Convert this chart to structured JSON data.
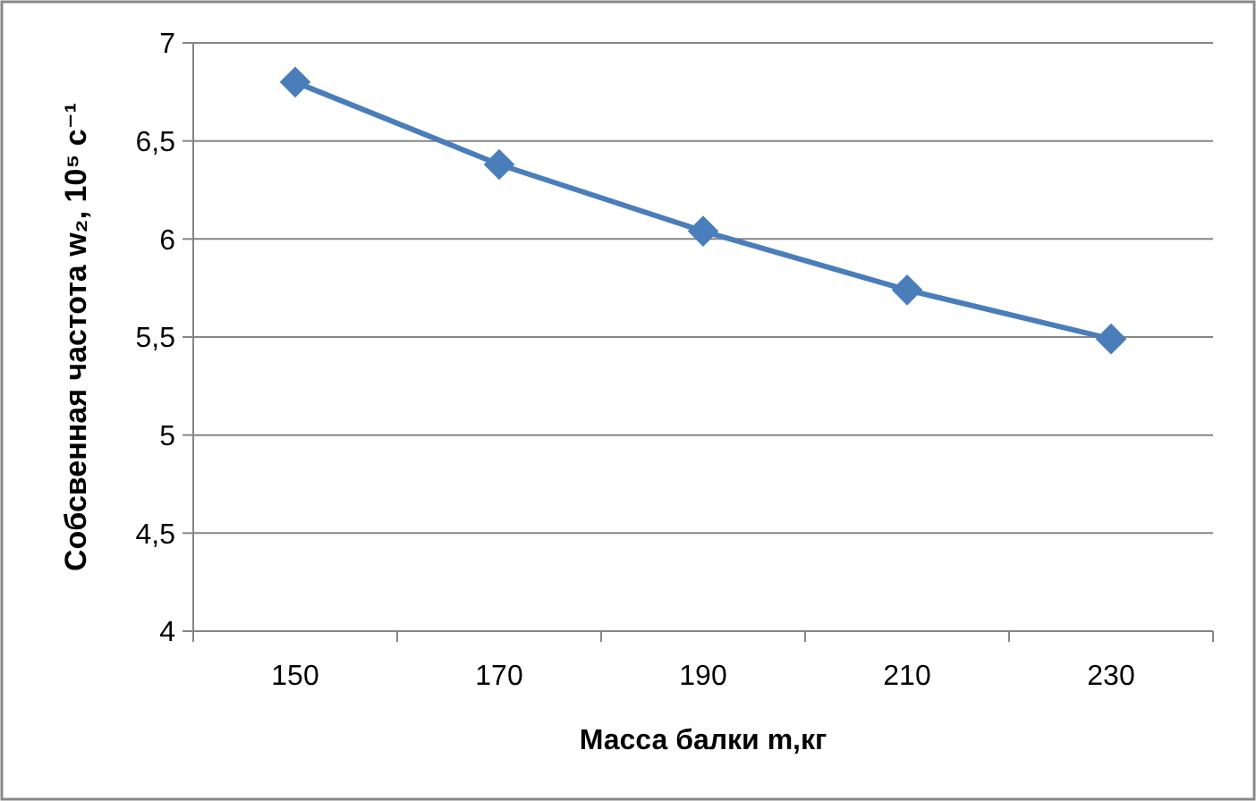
{
  "chart_data": {
    "type": "line",
    "xlabel": "Масса балки m,кг",
    "ylabel": "Собсвенная частота w₂, 10⁵ с⁻¹",
    "categories": [
      "150",
      "170",
      "190",
      "210",
      "230"
    ],
    "series": [
      {
        "color": "#4a7ebb",
        "values": [
          6.8,
          6.38,
          6.04,
          5.74,
          5.49
        ]
      }
    ],
    "ylim": [
      4,
      7
    ],
    "yticks": [
      {
        "value": 4,
        "label": "4"
      },
      {
        "value": 4.5,
        "label": "4,5"
      },
      {
        "value": 5,
        "label": "5"
      },
      {
        "value": 5.5,
        "label": "5,5"
      },
      {
        "value": 6,
        "label": "6"
      },
      {
        "value": 6.5,
        "label": "6,5"
      },
      {
        "value": 7,
        "label": "7"
      }
    ],
    "grid": "y",
    "marker": "diamond",
    "line_style": "solid"
  }
}
